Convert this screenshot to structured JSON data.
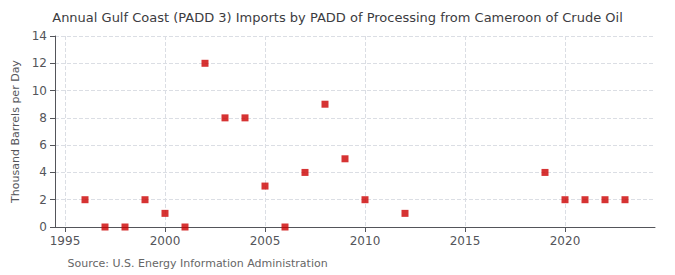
{
  "chart_data": {
    "type": "scatter",
    "title": "Annual Gulf Coast (PADD 3) Imports by PADD of Processing from Cameroon of Crude Oil",
    "ylabel": "Thousand Barrels per Day",
    "annotation": "Source: U.S. Energy Information Administration",
    "x": [
      1996,
      1997,
      1998,
      1999,
      2000,
      2001,
      2002,
      2003,
      2004,
      2005,
      2006,
      2007,
      2008,
      2009,
      2010,
      2012,
      2019,
      2020,
      2021,
      2022,
      2023
    ],
    "values": [
      2,
      0,
      0,
      2,
      1,
      0,
      12,
      8,
      8,
      3,
      0,
      4,
      9,
      5,
      2,
      1,
      4,
      2,
      2,
      2,
      2
    ],
    "color": "#cc0000",
    "marker": "square",
    "xlim": [
      1994.5,
      2024.5
    ],
    "xticks": [
      1995,
      2000,
      2005,
      2010,
      2015,
      2020
    ],
    "ylim": [
      0,
      14
    ],
    "yticks": [
      0,
      2,
      4,
      6,
      8,
      10,
      12,
      14
    ],
    "grid": true
  }
}
